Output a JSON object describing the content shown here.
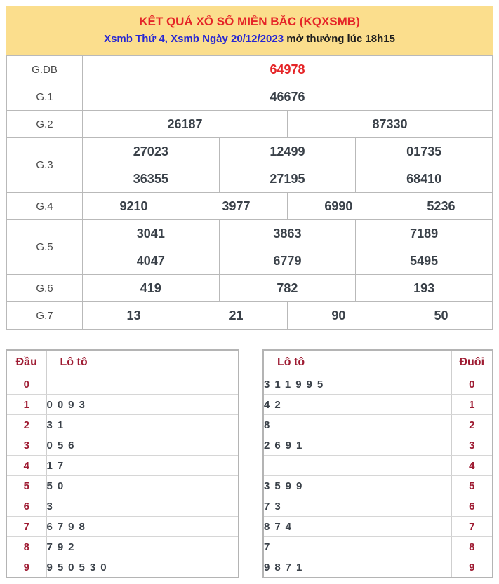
{
  "header": {
    "title": "KẾT QUẢ XỔ SỐ MIỀN BẮC (KQXSMB)",
    "subtitle_link": "Xsmb Thứ 4, Xsmb Ngày 20/12/2023",
    "subtitle_rest": " mở thưởng lúc 18h15"
  },
  "prize_table": {
    "rows": {
      "gdb": {
        "label": "G.ĐB",
        "values": [
          "64978"
        ]
      },
      "g1": {
        "label": "G.1",
        "values": [
          "46676"
        ]
      },
      "g2": {
        "label": "G.2",
        "values": [
          "26187",
          "87330"
        ]
      },
      "g3": {
        "label": "G.3",
        "values": [
          "27023",
          "12499",
          "01735",
          "36355",
          "27195",
          "68410"
        ]
      },
      "g4": {
        "label": "G.4",
        "values": [
          "9210",
          "3977",
          "6990",
          "5236"
        ]
      },
      "g5": {
        "label": "G.5",
        "values": [
          "3041",
          "3863",
          "7189",
          "4047",
          "6779",
          "5495"
        ]
      },
      "g6": {
        "label": "G.6",
        "values": [
          "419",
          "782",
          "193"
        ]
      },
      "g7": {
        "label": "G.7",
        "values": [
          "13",
          "21",
          "90",
          "50"
        ]
      }
    }
  },
  "dau_table": {
    "col1_header": "Đầu",
    "col2_header": "Lô tô",
    "rows": [
      {
        "dau": "0",
        "loto": ""
      },
      {
        "dau": "1",
        "loto": "0093"
      },
      {
        "dau": "2",
        "loto": "31"
      },
      {
        "dau": "3",
        "loto": "056"
      },
      {
        "dau": "4",
        "loto": "17"
      },
      {
        "dau": "5",
        "loto": "50"
      },
      {
        "dau": "6",
        "loto": "3"
      },
      {
        "dau": "7",
        "loto": "6798"
      },
      {
        "dau": "8",
        "loto": "792"
      },
      {
        "dau": "9",
        "loto": "950530"
      }
    ]
  },
  "duoi_table": {
    "col1_header": "Lô tô",
    "col2_header": "Đuôi",
    "rows": [
      {
        "loto": "311995",
        "duoi": "0"
      },
      {
        "loto": "42",
        "duoi": "1"
      },
      {
        "loto": "8",
        "duoi": "2"
      },
      {
        "loto": "2691",
        "duoi": "3"
      },
      {
        "loto": "",
        "duoi": "4"
      },
      {
        "loto": "3599",
        "duoi": "5"
      },
      {
        "loto": "73",
        "duoi": "6"
      },
      {
        "loto": "874",
        "duoi": "7"
      },
      {
        "loto": "7",
        "duoi": "8"
      },
      {
        "loto": "9871",
        "duoi": "9"
      }
    ]
  },
  "colors": {
    "header_bg": "#FBDE8D",
    "title_red": "#E52528",
    "link_blue": "#2626D3",
    "maroon": "#9E1B32",
    "value_dark": "#3A4149",
    "border_gray": "#B4B4B4"
  }
}
